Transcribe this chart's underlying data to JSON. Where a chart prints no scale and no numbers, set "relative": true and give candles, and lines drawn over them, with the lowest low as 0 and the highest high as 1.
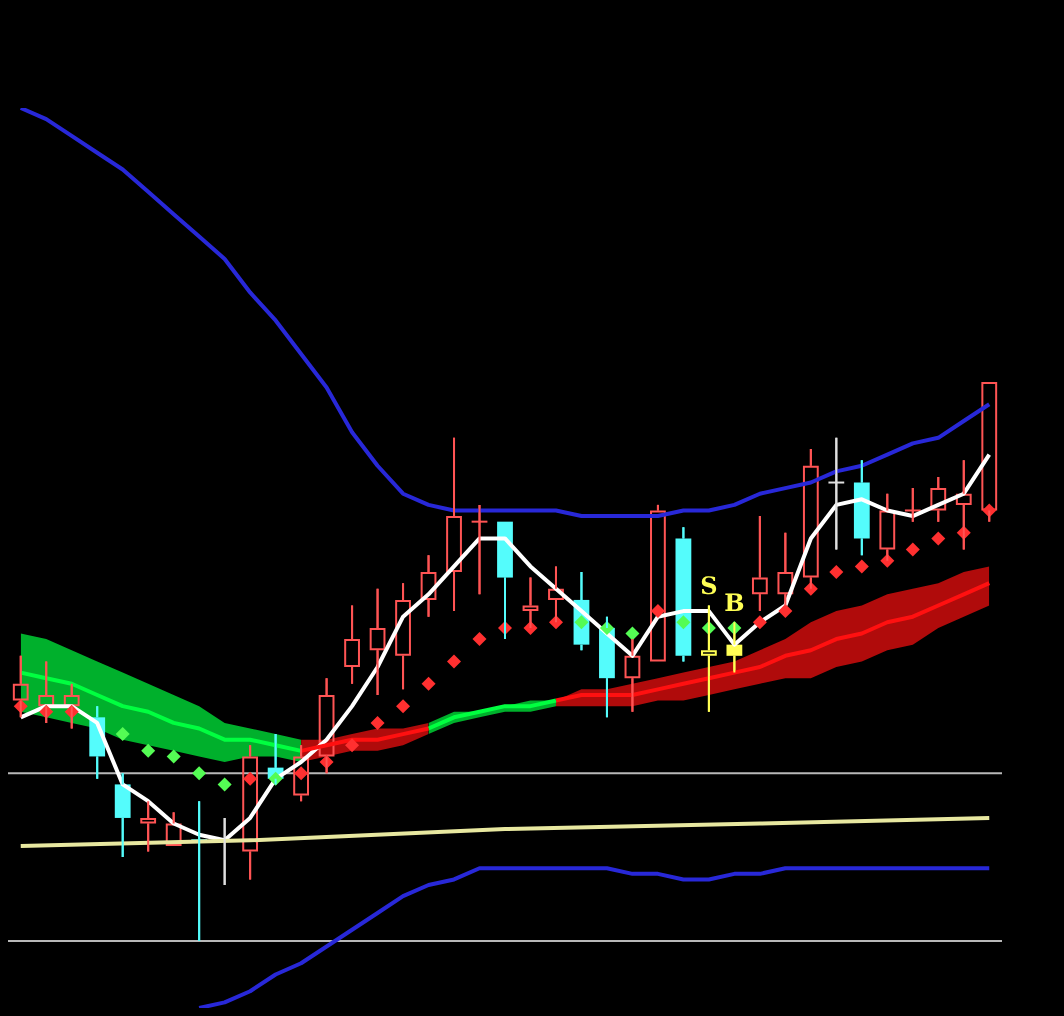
{
  "chart_data": {
    "type": "candlestick",
    "relative": true,
    "legend": false,
    "tick_labels": false,
    "categories": [
      null,
      null,
      null,
      null,
      null,
      null,
      null,
      null,
      null,
      null,
      null,
      null,
      null,
      null,
      null,
      null,
      null,
      null,
      null,
      null,
      null,
      null,
      null,
      null,
      null,
      null,
      null,
      null,
      null,
      null,
      null,
      null,
      null,
      null,
      null,
      null,
      null,
      null,
      null
    ],
    "ohlc": [
      [
        0.43,
        0.51,
        0.4,
        0.46
      ],
      [
        0.42,
        0.5,
        0.39,
        0.44
      ],
      [
        0.42,
        0.46,
        0.38,
        0.44
      ],
      [
        0.4,
        0.42,
        0.29,
        0.33
      ],
      [
        0.28,
        0.3,
        0.15,
        0.22
      ],
      [
        0.21,
        0.25,
        0.16,
        0.22
      ],
      [
        0.17,
        0.23,
        0.17,
        0.21
      ],
      [
        0.18,
        0.25,
        0,
        0.18
      ],
      [
        0.18,
        0.22,
        0.1,
        0.18
      ],
      [
        0.16,
        0.35,
        0.11,
        0.33
      ],
      [
        0.31,
        0.37,
        0.28,
        0.29
      ],
      [
        0.26,
        0.35,
        0.25,
        0.33
      ],
      [
        0.33,
        0.47,
        0.3,
        0.44
      ],
      [
        0.49,
        0.6,
        0.46,
        0.54
      ],
      [
        0.52,
        0.63,
        0.44,
        0.56
      ],
      [
        0.51,
        0.64,
        0.45,
        0.61
      ],
      [
        0.61,
        0.69,
        0.58,
        0.66
      ],
      [
        0.66,
        0.9,
        0.59,
        0.76
      ],
      [
        0.75,
        0.78,
        0.62,
        0.75
      ],
      [
        0.75,
        0.75,
        0.54,
        0.65
      ],
      [
        0.59,
        0.65,
        0.56,
        0.6
      ],
      [
        0.61,
        0.67,
        0.57,
        0.63
      ],
      [
        0.61,
        0.66,
        0.52,
        0.53
      ],
      [
        0.56,
        0.58,
        0.4,
        0.47
      ],
      [
        0.47,
        0.54,
        0.41,
        0.51
      ],
      [
        0.5,
        0.78,
        0.5,
        0.77
      ],
      [
        0.72,
        0.74,
        0.5,
        0.51
      ],
      [
        0.51,
        0.6,
        0.41,
        0.52
      ],
      [
        0.53,
        0.57,
        0.48,
        0.51
      ],
      [
        0.62,
        0.76,
        0.59,
        0.65
      ],
      [
        0.62,
        0.73,
        0.6,
        0.66
      ],
      [
        0.65,
        0.88,
        0.63,
        0.85
      ],
      [
        0.82,
        0.9,
        0.7,
        0.82
      ],
      [
        0.82,
        0.86,
        0.69,
        0.72
      ],
      [
        0.7,
        0.8,
        0.68,
        0.77
      ],
      [
        0.77,
        0.81,
        0.75,
        0.77
      ],
      [
        0.77,
        0.83,
        0.75,
        0.81
      ],
      [
        0.78,
        0.86,
        0.7,
        0.8
      ],
      [
        0.77,
        1,
        0.75,
        1
      ]
    ],
    "colors": [
      "#ff5454",
      "#ff5454",
      "#ff5454",
      "#54fcfc",
      "#54fcfc",
      "#ff5454",
      "#ff5454",
      "#54fcfc",
      "#e0e0e0",
      "#ff5454",
      "#54fcfc",
      "#ff5454",
      "#ff5454",
      "#ff5454",
      "#ff5454",
      "#ff5454",
      "#ff5454",
      "#ff5454",
      "#ff5454",
      "#54fcfc",
      "#ff5454",
      "#ff5454",
      "#54fcfc",
      "#54fcfc",
      "#ff5454",
      "#ff5454",
      "#54fcfc",
      "#ffff54",
      "#ffff54",
      "#ff5454",
      "#ff5454",
      "#ff5454",
      "#e0e0e0",
      "#54fcfc",
      "#ff5454",
      "#ff5454",
      "#ff5454",
      "#ff5454",
      "#ff5454"
    ],
    "value_labels": [
      null,
      null,
      null,
      null,
      null,
      null,
      null,
      null,
      null,
      null,
      null,
      null,
      null,
      null,
      null,
      null,
      null,
      null,
      null,
      null,
      null,
      null,
      null,
      null,
      null,
      null,
      null,
      "S",
      "B",
      null,
      null,
      null,
      null,
      null,
      null,
      null,
      null,
      null,
      null
    ],
    "series": [
      {
        "type": "line",
        "color": "#00ff40",
        "marker": "none",
        "values": [
          0.48,
          0.47,
          0.46,
          0.44,
          0.42,
          0.41,
          0.39,
          0.38,
          0.36,
          0.36,
          0.35,
          0.34,
          null,
          null,
          null,
          null,
          null,
          null,
          null,
          null,
          null,
          null,
          null,
          null,
          null,
          null,
          null,
          null,
          null,
          null,
          null,
          null,
          null,
          null,
          null,
          null,
          null,
          null,
          null
        ],
        "upper": [
          0.55,
          0.54,
          0.52,
          0.5,
          0.48,
          0.46,
          0.44,
          0.42,
          0.39,
          0.38,
          0.37,
          0.36,
          null,
          null,
          null,
          null,
          null,
          null,
          null,
          null,
          null,
          null,
          null,
          null,
          null,
          null,
          null,
          null,
          null,
          null,
          null,
          null,
          null,
          null,
          null,
          null,
          null,
          null,
          null
        ],
        "lower": [
          0.41,
          0.4,
          0.39,
          0.38,
          0.36,
          0.35,
          0.34,
          0.33,
          0.32,
          0.33,
          0.33,
          0.32,
          null,
          null,
          null,
          null,
          null,
          null,
          null,
          null,
          null,
          null,
          null,
          null,
          null,
          null,
          null,
          null,
          null,
          null,
          null,
          null,
          null,
          null,
          null,
          null,
          null,
          null,
          null
        ]
      },
      {
        "type": "line",
        "color": "#ff1010",
        "marker": "none",
        "values": [
          null,
          null,
          null,
          null,
          null,
          null,
          null,
          null,
          null,
          null,
          null,
          0.34,
          0.35,
          0.36,
          0.36,
          0.37,
          0.38,
          null,
          null,
          null,
          null,
          null,
          null,
          null,
          null,
          null,
          null,
          null,
          null,
          null,
          null,
          null,
          null,
          null,
          null,
          null,
          null,
          null,
          null
        ],
        "upper": [
          null,
          null,
          null,
          null,
          null,
          null,
          null,
          null,
          null,
          null,
          null,
          0.36,
          0.36,
          0.37,
          0.38,
          0.38,
          0.39,
          null,
          null,
          null,
          null,
          null,
          null,
          null,
          null,
          null,
          null,
          null,
          null,
          null,
          null,
          null,
          null,
          null,
          null,
          null,
          null,
          null,
          null
        ],
        "lower": [
          null,
          null,
          null,
          null,
          null,
          null,
          null,
          null,
          null,
          null,
          null,
          0.32,
          0.33,
          0.34,
          0.34,
          0.35,
          0.37,
          null,
          null,
          null,
          null,
          null,
          null,
          null,
          null,
          null,
          null,
          null,
          null,
          null,
          null,
          null,
          null,
          null,
          null,
          null,
          null,
          null,
          null
        ]
      },
      {
        "type": "line",
        "color": "#00ff40",
        "marker": "none",
        "values": [
          null,
          null,
          null,
          null,
          null,
          null,
          null,
          null,
          null,
          null,
          null,
          null,
          null,
          null,
          null,
          null,
          0.38,
          0.4,
          0.41,
          0.42,
          0.42,
          0.43,
          null,
          null,
          null,
          null,
          null,
          null,
          null,
          null,
          null,
          null,
          null,
          null,
          null,
          null,
          null,
          null,
          null
        ],
        "upper": [
          null,
          null,
          null,
          null,
          null,
          null,
          null,
          null,
          null,
          null,
          null,
          null,
          null,
          null,
          null,
          null,
          0.39,
          0.41,
          0.41,
          0.42,
          0.43,
          0.43,
          null,
          null,
          null,
          null,
          null,
          null,
          null,
          null,
          null,
          null,
          null,
          null,
          null,
          null,
          null,
          null,
          null
        ],
        "lower": [
          null,
          null,
          null,
          null,
          null,
          null,
          null,
          null,
          null,
          null,
          null,
          null,
          null,
          null,
          null,
          null,
          0.37,
          0.39,
          0.4,
          0.41,
          0.41,
          0.42,
          null,
          null,
          null,
          null,
          null,
          null,
          null,
          null,
          null,
          null,
          null,
          null,
          null,
          null,
          null,
          null,
          null
        ]
      },
      {
        "type": "line",
        "color": "#ff1010",
        "marker": "none",
        "values": [
          null,
          null,
          null,
          null,
          null,
          null,
          null,
          null,
          null,
          null,
          null,
          null,
          null,
          null,
          null,
          null,
          null,
          null,
          null,
          null,
          null,
          0.43,
          0.44,
          0.44,
          0.44,
          0.45,
          0.46,
          0.47,
          0.48,
          0.49,
          0.51,
          0.52,
          0.54,
          0.55,
          0.57,
          0.58,
          0.6,
          0.62,
          0.64
        ],
        "upper": [
          null,
          null,
          null,
          null,
          null,
          null,
          null,
          null,
          null,
          null,
          null,
          null,
          null,
          null,
          null,
          null,
          null,
          null,
          null,
          null,
          null,
          0.43,
          0.45,
          0.45,
          0.46,
          0.47,
          0.48,
          0.49,
          0.5,
          0.52,
          0.54,
          0.57,
          0.59,
          0.6,
          0.62,
          0.63,
          0.64,
          0.66,
          0.67
        ],
        "lower": [
          null,
          null,
          null,
          null,
          null,
          null,
          null,
          null,
          null,
          null,
          null,
          null,
          null,
          null,
          null,
          null,
          null,
          null,
          null,
          null,
          null,
          0.42,
          0.42,
          0.42,
          0.42,
          0.43,
          0.43,
          0.44,
          0.45,
          0.46,
          0.47,
          0.47,
          0.49,
          0.5,
          0.52,
          0.53,
          0.56,
          0.58,
          0.6
        ]
      },
      {
        "type": "line",
        "color": "#2828d8",
        "marker": "none",
        "values": [
          1.49,
          1.47,
          1.44,
          1.41,
          1.38,
          1.34,
          1.3,
          1.26,
          1.22,
          1.16,
          1.11,
          1.05,
          0.99,
          0.91,
          0.85,
          0.8,
          0.78,
          0.77,
          0.77,
          0.77,
          0.77,
          0.77,
          0.76,
          0.76,
          0.76,
          0.76,
          0.77,
          0.77,
          0.78,
          0.8,
          0.81,
          0.82,
          0.84,
          0.85,
          0.87,
          0.89,
          0.9,
          0.93,
          0.96
        ]
      },
      {
        "type": "line",
        "color": "#2828d8",
        "marker": "none",
        "values": [
          null,
          null,
          null,
          null,
          null,
          null,
          null,
          -0.12,
          -0.11,
          -0.09,
          -0.06,
          -0.04,
          -0.01,
          0.02,
          0.05,
          0.08,
          0.1,
          0.11,
          0.13,
          0.13,
          0.13,
          0.13,
          0.13,
          0.13,
          0.12,
          0.12,
          0.11,
          0.11,
          0.12,
          0.12,
          0.13,
          0.13,
          0.13,
          0.13,
          0.13,
          0.13,
          0.13,
          0.13,
          0.13
        ]
      },
      {
        "type": "line",
        "color": "#e8e8a0",
        "marker": "none",
        "values": [
          0.17,
          null,
          null,
          null,
          null,
          null,
          null,
          null,
          null,
          0.18,
          null,
          null,
          null,
          null,
          null,
          null,
          null,
          null,
          null,
          0.2,
          null,
          null,
          null,
          null,
          null,
          null,
          null,
          null,
          null,
          0.21,
          null,
          null,
          null,
          null,
          null,
          null,
          null,
          null,
          0.22
        ]
      },
      {
        "type": "line",
        "color": "#ffffff",
        "marker": "none",
        "values": [
          0.4,
          0.42,
          0.42,
          0.39,
          0.28,
          0.25,
          0.21,
          0.19,
          0.18,
          0.22,
          0.29,
          0.32,
          0.36,
          0.42,
          0.49,
          0.58,
          0.62,
          0.67,
          0.72,
          0.72,
          0.67,
          0.63,
          0.59,
          0.55,
          0.51,
          0.58,
          0.59,
          0.59,
          0.53,
          0.57,
          0.6,
          0.72,
          0.78,
          0.79,
          0.77,
          0.76,
          0.78,
          0.8,
          0.87
        ]
      },
      {
        "type": "scatter",
        "marker": "diamond",
        "values": [
          0.42,
          0.41,
          0.41,
          null,
          0.37,
          0.34,
          0.33,
          0.3,
          0.28,
          0.29,
          0.29,
          0.3,
          0.32,
          0.35,
          0.39,
          0.42,
          0.46,
          0.5,
          0.54,
          0.56,
          0.56,
          0.57,
          0.57,
          0.56,
          0.55,
          0.59,
          0.57,
          0.56,
          0.56,
          0.57,
          0.59,
          0.63,
          0.66,
          0.67,
          0.68,
          0.7,
          0.72,
          0.73,
          0.77
        ],
        "colors": [
          "#ff3030",
          "#ff3030",
          "#ff3030",
          "#ff3030",
          "#54fc54",
          "#54fc54",
          "#54fc54",
          "#54fc54",
          "#54fc54",
          "#ff3030",
          "#54fc54",
          "#ff3030",
          "#ff3030",
          "#ff3030",
          "#ff3030",
          "#ff3030",
          "#ff3030",
          "#ff3030",
          "#ff3030",
          "#ff3030",
          "#ff3030",
          "#ff3030",
          "#54fc54",
          "#54fc54",
          "#54fc54",
          "#ff3030",
          "#54fc54",
          "#54fc54",
          "#54fc54",
          "#ff3030",
          "#ff3030",
          "#ff3030",
          "#ff3030",
          "#ff3030",
          "#ff3030",
          "#ff3030",
          "#ff3030",
          "#ff3030",
          "#ff3030"
        ]
      }
    ],
    "ref_lines": [
      {
        "axis": "y",
        "value": 0.3,
        "color": "#b8b8b8"
      },
      {
        "axis": "y",
        "value": 0,
        "color": "#b8b8b8"
      }
    ]
  }
}
